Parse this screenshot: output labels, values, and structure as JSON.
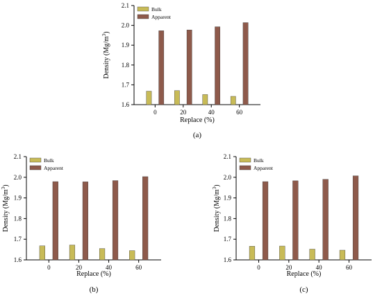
{
  "colors": {
    "bulk": "#c8bb57",
    "apparent": "#8e5a4b",
    "axis": "#000000"
  },
  "chart_data": [
    {
      "type": "bar",
      "panel_label": "(a)",
      "categories": [
        "0",
        "20",
        "40",
        "60"
      ],
      "series": [
        {
          "name": "Bulk",
          "values": [
            1.668,
            1.671,
            1.651,
            1.642
          ]
        },
        {
          "name": "Apparent",
          "values": [
            1.973,
            1.977,
            1.993,
            2.014
          ]
        }
      ],
      "xlabel": "Replace (%)",
      "ylabel": "Density (Mg/m",
      "ylabel_sup": "3",
      "ylabel_end": ")",
      "ylim": [
        1.6,
        2.1
      ],
      "yticks": [
        "1.6",
        "1.7",
        "1.8",
        "1.9",
        "2.0",
        "2.1"
      ],
      "legend": "top-left"
    },
    {
      "type": "bar",
      "panel_label": "(b)",
      "categories": [
        "0",
        "20",
        "40",
        "60"
      ],
      "series": [
        {
          "name": "Bulk",
          "values": [
            1.668,
            1.672,
            1.655,
            1.645
          ]
        },
        {
          "name": "Apparent",
          "values": [
            1.979,
            1.978,
            1.984,
            2.003
          ]
        }
      ],
      "xlabel": "Replace (%)",
      "ylabel": "Density (Mg/m",
      "ylabel_sup": "3",
      "ylabel_end": ")",
      "ylim": [
        1.6,
        2.1
      ],
      "yticks": [
        "1.6",
        "1.7",
        "1.8",
        "1.9",
        "2.0",
        "2.1"
      ],
      "legend": "top-left"
    },
    {
      "type": "bar",
      "panel_label": "(c)",
      "categories": [
        "0",
        "20",
        "40",
        "60"
      ],
      "series": [
        {
          "name": "Bulk",
          "values": [
            1.666,
            1.667,
            1.652,
            1.647
          ]
        },
        {
          "name": "Apparent",
          "values": [
            1.979,
            1.983,
            1.99,
            2.007
          ]
        }
      ],
      "xlabel": "Replace (%)",
      "ylabel": "Density (Mg/m",
      "ylabel_sup": "3",
      "ylabel_end": ")",
      "ylim": [
        1.6,
        2.1
      ],
      "yticks": [
        "1.6",
        "1.7",
        "1.8",
        "1.9",
        "2.0",
        "2.1"
      ],
      "legend": "top-left"
    }
  ]
}
